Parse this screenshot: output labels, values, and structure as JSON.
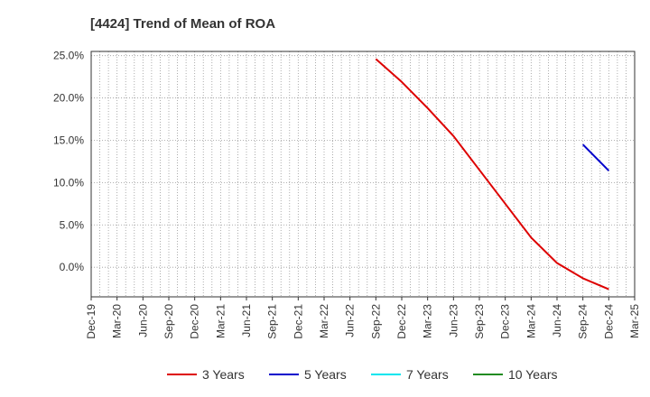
{
  "chart_data": {
    "type": "line",
    "title": "[4424]  Trend of Mean of ROA",
    "xlabel": "",
    "ylabel": "",
    "x_ticks": [
      "Dec-19",
      "Mar-20",
      "Jun-20",
      "Sep-20",
      "Dec-20",
      "Mar-21",
      "Jun-21",
      "Sep-21",
      "Dec-21",
      "Mar-22",
      "Jun-22",
      "Sep-22",
      "Dec-22",
      "Mar-23",
      "Jun-23",
      "Sep-23",
      "Dec-23",
      "Mar-24",
      "Jun-24",
      "Sep-24",
      "Dec-24",
      "Mar-25"
    ],
    "y_ticks": [
      "25.0%",
      "20.0%",
      "15.0%",
      "10.0%",
      "5.0%",
      "0.0%"
    ],
    "ylim": [
      -3.5,
      25.5
    ],
    "grid": true,
    "legend_position": "bottom",
    "series": [
      {
        "name": "3 Years",
        "color": "#dd0000",
        "x": [
          "Sep-22",
          "Dec-22",
          "Mar-23",
          "Jun-23",
          "Sep-23",
          "Dec-23",
          "Mar-24",
          "Jun-24",
          "Sep-24",
          "Dec-24"
        ],
        "values": [
          24.6,
          21.9,
          18.8,
          15.5,
          11.5,
          7.5,
          3.5,
          0.5,
          -1.3,
          -2.6
        ]
      },
      {
        "name": "5 Years",
        "color": "#0000cc",
        "x": [
          "Sep-24",
          "Dec-24"
        ],
        "values": [
          14.5,
          11.4
        ]
      },
      {
        "name": "7 Years",
        "color": "#00e5ee",
        "x": [],
        "values": []
      },
      {
        "name": "10 Years",
        "color": "#228b22",
        "x": [],
        "values": []
      }
    ]
  }
}
